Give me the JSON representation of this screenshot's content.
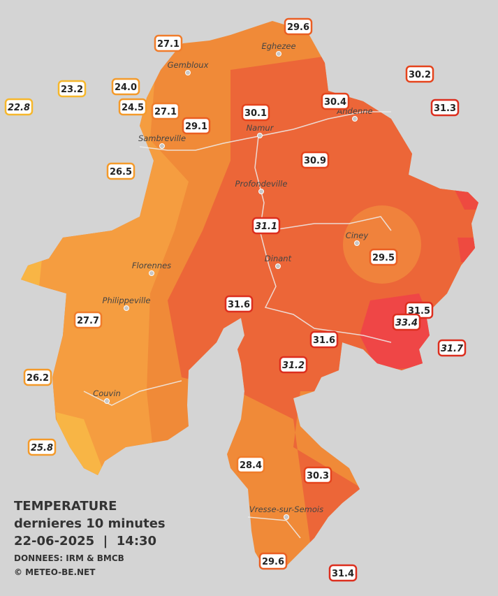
{
  "stations": [
    {
      "value": 29.6
    },
    {
      "value": 27.1
    },
    {
      "value": 30.2
    },
    {
      "value": 23.2
    },
    {
      "value": 24.0
    },
    {
      "value": 22.8,
      "italic": true
    },
    {
      "value": 24.5
    },
    {
      "value": 27.1
    },
    {
      "value": 30.1
    },
    {
      "value": 30.4
    },
    {
      "value": 31.3
    },
    {
      "value": 29.1
    },
    {
      "value": 30.9
    },
    {
      "value": 26.5
    },
    {
      "value": 31.1,
      "italic": true
    },
    {
      "value": 29.5
    },
    {
      "value": 31.6
    },
    {
      "value": 31.5
    },
    {
      "value": 33.4,
      "italic": true
    },
    {
      "value": 27.7
    },
    {
      "value": 31.6
    },
    {
      "value": 31.7,
      "italic": true
    },
    {
      "value": 31.2,
      "italic": true
    },
    {
      "value": 26.2
    },
    {
      "value": 25.8,
      "italic": true
    },
    {
      "value": 28.4
    },
    {
      "value": 30.3
    },
    {
      "value": 29.6
    },
    {
      "value": 31.4
    }
  ],
  "towns": [
    "Eghezee",
    "Gembloux",
    "Andenne",
    "Namur",
    "Sambreville",
    "Profondeville",
    "Ciney",
    "Dinant",
    "Florennes",
    "Philippeville",
    "Couvin",
    "Vresse-sur-Semois"
  ],
  "legend": {
    "title": "TEMPERATURE",
    "subtitle": "dernieres 10 minutes",
    "datetime": "22-06-2025  |  14:30",
    "source": "DONNEES: IRM & BMCB",
    "credit": "© METEO-BE.NET"
  }
}
